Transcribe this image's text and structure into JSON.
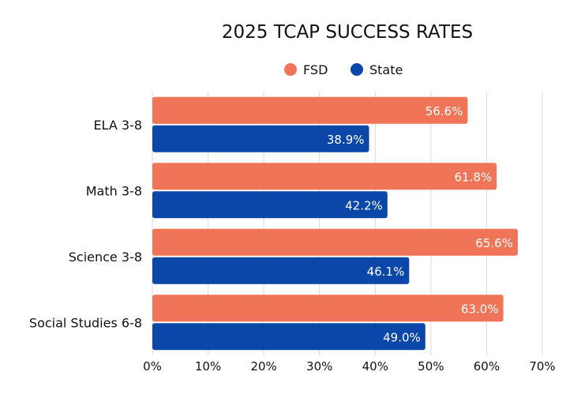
{
  "chart_data": {
    "type": "bar",
    "orientation": "horizontal",
    "title": "2025 TCAP SUCCESS RATES",
    "categories": [
      "ELA 3-8",
      "Math 3-8",
      "Science 3-8",
      "Social Studies 6-8"
    ],
    "series": [
      {
        "name": "FSD",
        "color": "#F07457",
        "values": [
          56.6,
          61.8,
          65.6,
          63.0
        ],
        "labels": [
          "56.6%",
          "61.8%",
          "65.6%",
          "63.0%"
        ]
      },
      {
        "name": "State",
        "color": "#0B47A8",
        "values": [
          38.9,
          42.2,
          46.1,
          49.0
        ],
        "labels": [
          "38.9%",
          "42.2%",
          "46.1%",
          "49.0%"
        ]
      }
    ],
    "xlim": [
      0,
      70
    ],
    "xticks": [
      "0%",
      "10%",
      "20%",
      "30%",
      "40%",
      "50%",
      "60%",
      "70%"
    ],
    "grid": true,
    "legend_position": "top-center"
  }
}
